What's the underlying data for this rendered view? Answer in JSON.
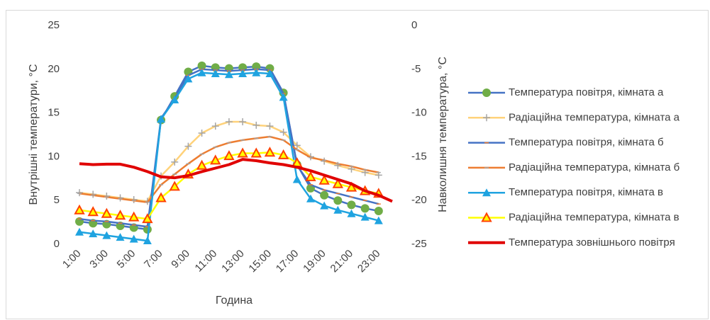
{
  "chart_data": {
    "type": "line",
    "categories": [
      "1:00",
      null,
      "3:00",
      null,
      "5:00",
      null,
      "7:00",
      null,
      "9:00",
      null,
      "11:00",
      null,
      "13:00",
      null,
      "15:00",
      null,
      "17:00",
      null,
      "19:00",
      null,
      "21:00",
      null,
      "23:00",
      null
    ],
    "x_label": "Година",
    "y_label": "Внутрішні температури, °C",
    "y2_label": "Навколишня температура, °C",
    "ylim": [
      0,
      25
    ],
    "yticks": [
      0,
      5,
      10,
      15,
      20,
      25
    ],
    "y2lim": [
      -25,
      0
    ],
    "y2ticks": [
      0,
      -5,
      -10,
      -15,
      -20,
      -25
    ],
    "grid": false,
    "legend": "right",
    "series": [
      {
        "name": "Температура повітря, кімната а",
        "color": "#4472c4",
        "marker": "circle",
        "marker_color": "#70ad47",
        "values": [
          2.6,
          2.4,
          2.3,
          2.1,
          1.9,
          1.7,
          14.2,
          16.9,
          19.7,
          20.4,
          20.2,
          20.1,
          20.2,
          20.3,
          20.1,
          17.3,
          9.1,
          6.4,
          5.6,
          5.0,
          4.5,
          4.1,
          3.8,
          null
        ]
      },
      {
        "name": "Радіаційна температура, кімната а",
        "color": "#ffd27a",
        "marker": "plus",
        "marker_color": "#a5a5a5",
        "values": [
          5.9,
          5.7,
          5.5,
          5.3,
          5.1,
          4.9,
          7.8,
          9.4,
          11.2,
          12.7,
          13.5,
          14.0,
          14.0,
          13.6,
          13.5,
          12.8,
          11.3,
          10.0,
          9.5,
          9.0,
          8.6,
          8.2,
          7.9,
          null
        ]
      },
      {
        "name": "Температура повітря, кімната б",
        "color": "#4472c4",
        "marker": "dash",
        "marker_color": "#ed7d31",
        "values": [
          2.9,
          2.7,
          2.6,
          2.4,
          2.2,
          2.0,
          14.4,
          16.6,
          19.3,
          20.0,
          19.9,
          19.8,
          19.9,
          20.0,
          19.9,
          17.2,
          9.0,
          6.8,
          6.2,
          5.8,
          5.4,
          5.0,
          4.6,
          null
        ]
      },
      {
        "name": "Радіаційна температура, кімната б",
        "color": "#ed7d31",
        "marker": "dash",
        "marker_color": "#a5a5a5",
        "values": [
          5.8,
          5.6,
          5.4,
          5.2,
          5.0,
          4.8,
          6.8,
          8.0,
          9.2,
          10.3,
          11.1,
          11.6,
          11.9,
          12.1,
          12.3,
          11.9,
          10.8,
          9.9,
          9.6,
          9.2,
          8.9,
          8.5,
          8.2,
          null
        ]
      },
      {
        "name": "Температура повітря, кімната в",
        "color": "#1fa3e0",
        "marker": "triangle",
        "marker_color": "#1fa3e0",
        "values": [
          1.4,
          1.2,
          1.0,
          0.8,
          0.6,
          0.4,
          14.3,
          16.5,
          18.9,
          19.6,
          19.5,
          19.4,
          19.5,
          19.6,
          19.5,
          16.8,
          7.4,
          5.2,
          4.4,
          3.9,
          3.5,
          3.1,
          2.7,
          null
        ]
      },
      {
        "name": "Радіаційна температура, кімната в",
        "color": "#ffff00",
        "marker": "triangle",
        "marker_color": "#ff4000",
        "values": [
          3.9,
          3.7,
          3.5,
          3.3,
          3.1,
          2.9,
          5.3,
          6.6,
          8.0,
          9.0,
          9.6,
          10.1,
          10.4,
          10.4,
          10.5,
          10.2,
          9.3,
          7.7,
          7.3,
          6.9,
          6.5,
          6.1,
          5.8,
          null
        ]
      },
      {
        "name": "Температура зовнішнього повітря",
        "color": "#e00000",
        "marker": "none",
        "axis": "y2",
        "values": [
          -15.8,
          -15.9,
          -15.85,
          -15.85,
          -16.2,
          -16.7,
          -17.3,
          -17.4,
          -17.15,
          -16.7,
          -16.3,
          -15.9,
          -15.3,
          -15.45,
          -15.7,
          -15.9,
          -16.2,
          -16.6,
          -17.1,
          -17.6,
          -18.1,
          -18.9,
          -19.4,
          -20.1
        ]
      }
    ]
  }
}
